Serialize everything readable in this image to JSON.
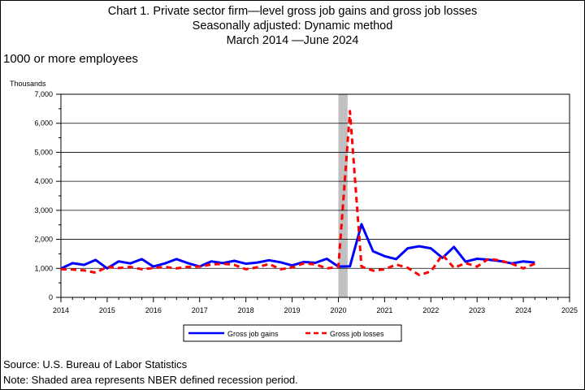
{
  "header": {
    "title_line1": "Chart 1. Private sector firm—level gross job gains and gross job losses",
    "title_line2": "Seasonally adjusted: Dynamic method",
    "title_line3": "March 2014  —June 2024",
    "subtitle": "1000 or more employees"
  },
  "footer": {
    "source": "Source: U.S. Bureau of Labor Statistics",
    "note": "Note: Shaded area represents NBER defined recession period."
  },
  "chart_data": {
    "type": "line",
    "title": "Chart 1. Private sector firm—level gross job gains and gross job losses",
    "ylabel": "Thousands",
    "xlabel": "",
    "xlim": [
      2014,
      2025
    ],
    "ylim": [
      0,
      7000
    ],
    "x_ticks": [
      "2014",
      "2015",
      "2016",
      "2017",
      "2018",
      "2019",
      "2020",
      "2021",
      "2022",
      "2023",
      "2024",
      "2025"
    ],
    "y_ticks": [
      "0",
      "1,000",
      "2,000",
      "3,000",
      "4,000",
      "5,000",
      "6,000",
      "7,000"
    ],
    "grid": true,
    "legend_position": "bottom",
    "recession_shading": {
      "start": 2020.0,
      "end": 2020.2,
      "color": "#c0c0c0"
    },
    "series": [
      {
        "name": "Gross job gains",
        "color": "#0000ff",
        "style": "solid",
        "x": [
          2014.0,
          2014.25,
          2014.5,
          2014.75,
          2015.0,
          2015.25,
          2015.5,
          2015.75,
          2016.0,
          2016.25,
          2016.5,
          2016.75,
          2017.0,
          2017.25,
          2017.5,
          2017.75,
          2018.0,
          2018.25,
          2018.5,
          2018.75,
          2019.0,
          2019.25,
          2019.5,
          2019.75,
          2020.0,
          2020.25,
          2020.5,
          2020.75,
          2021.0,
          2021.25,
          2021.5,
          2021.75,
          2022.0,
          2022.25,
          2022.5,
          2022.75,
          2023.0,
          2023.25,
          2023.5,
          2023.75,
          2024.0,
          2024.25
        ],
        "values": [
          990,
          1180,
          1120,
          1290,
          1000,
          1240,
          1170,
          1320,
          1060,
          1170,
          1320,
          1180,
          1060,
          1240,
          1180,
          1260,
          1160,
          1200,
          1280,
          1210,
          1100,
          1220,
          1190,
          1330,
          1060,
          1070,
          2520,
          1590,
          1420,
          1320,
          1690,
          1760,
          1690,
          1360,
          1740,
          1230,
          1330,
          1300,
          1250,
          1170,
          1240,
          1200
        ]
      },
      {
        "name": "Gross job losses",
        "color": "#ff0000",
        "style": "dashed",
        "x": [
          2014.0,
          2014.25,
          2014.5,
          2014.75,
          2015.0,
          2015.25,
          2015.5,
          2015.75,
          2016.0,
          2016.25,
          2016.5,
          2016.75,
          2017.0,
          2017.25,
          2017.5,
          2017.75,
          2018.0,
          2018.25,
          2018.5,
          2018.75,
          2019.0,
          2019.25,
          2019.5,
          2019.75,
          2020.0,
          2020.25,
          2020.5,
          2020.75,
          2021.0,
          2021.25,
          2021.5,
          2021.75,
          2022.0,
          2022.25,
          2022.5,
          2022.75,
          2023.0,
          2023.25,
          2023.5,
          2023.75,
          2024.0,
          2024.25
        ],
        "values": [
          970,
          960,
          930,
          850,
          1050,
          1010,
          1050,
          970,
          1010,
          1050,
          1000,
          1050,
          1060,
          1130,
          1160,
          1120,
          970,
          1040,
          1150,
          970,
          1030,
          1170,
          1140,
          1000,
          1050,
          6420,
          1060,
          920,
          970,
          1130,
          1020,
          770,
          890,
          1470,
          1020,
          1180,
          1060,
          1330,
          1270,
          1160,
          1000,
          1160
        ]
      }
    ]
  }
}
